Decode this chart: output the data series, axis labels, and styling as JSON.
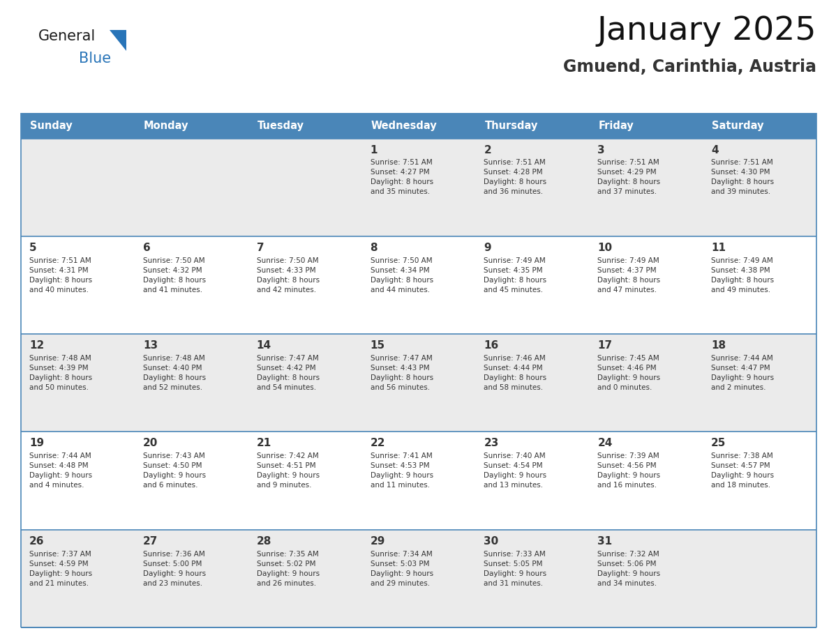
{
  "title": "January 2025",
  "subtitle": "Gmuend, Carinthia, Austria",
  "header_color": "#4a86b8",
  "header_text_color": "#ffffff",
  "cell_bg_even": "#ebebeb",
  "cell_bg_odd": "#ffffff",
  "day_number_color": "#333333",
  "text_color": "#333333",
  "separator_color": "#4a86b8",
  "days_of_week": [
    "Sunday",
    "Monday",
    "Tuesday",
    "Wednesday",
    "Thursday",
    "Friday",
    "Saturday"
  ],
  "calendar": [
    [
      {
        "day": "",
        "info": ""
      },
      {
        "day": "",
        "info": ""
      },
      {
        "day": "",
        "info": ""
      },
      {
        "day": "1",
        "info": "Sunrise: 7:51 AM\nSunset: 4:27 PM\nDaylight: 8 hours\nand 35 minutes."
      },
      {
        "day": "2",
        "info": "Sunrise: 7:51 AM\nSunset: 4:28 PM\nDaylight: 8 hours\nand 36 minutes."
      },
      {
        "day": "3",
        "info": "Sunrise: 7:51 AM\nSunset: 4:29 PM\nDaylight: 8 hours\nand 37 minutes."
      },
      {
        "day": "4",
        "info": "Sunrise: 7:51 AM\nSunset: 4:30 PM\nDaylight: 8 hours\nand 39 minutes."
      }
    ],
    [
      {
        "day": "5",
        "info": "Sunrise: 7:51 AM\nSunset: 4:31 PM\nDaylight: 8 hours\nand 40 minutes."
      },
      {
        "day": "6",
        "info": "Sunrise: 7:50 AM\nSunset: 4:32 PM\nDaylight: 8 hours\nand 41 minutes."
      },
      {
        "day": "7",
        "info": "Sunrise: 7:50 AM\nSunset: 4:33 PM\nDaylight: 8 hours\nand 42 minutes."
      },
      {
        "day": "8",
        "info": "Sunrise: 7:50 AM\nSunset: 4:34 PM\nDaylight: 8 hours\nand 44 minutes."
      },
      {
        "day": "9",
        "info": "Sunrise: 7:49 AM\nSunset: 4:35 PM\nDaylight: 8 hours\nand 45 minutes."
      },
      {
        "day": "10",
        "info": "Sunrise: 7:49 AM\nSunset: 4:37 PM\nDaylight: 8 hours\nand 47 minutes."
      },
      {
        "day": "11",
        "info": "Sunrise: 7:49 AM\nSunset: 4:38 PM\nDaylight: 8 hours\nand 49 minutes."
      }
    ],
    [
      {
        "day": "12",
        "info": "Sunrise: 7:48 AM\nSunset: 4:39 PM\nDaylight: 8 hours\nand 50 minutes."
      },
      {
        "day": "13",
        "info": "Sunrise: 7:48 AM\nSunset: 4:40 PM\nDaylight: 8 hours\nand 52 minutes."
      },
      {
        "day": "14",
        "info": "Sunrise: 7:47 AM\nSunset: 4:42 PM\nDaylight: 8 hours\nand 54 minutes."
      },
      {
        "day": "15",
        "info": "Sunrise: 7:47 AM\nSunset: 4:43 PM\nDaylight: 8 hours\nand 56 minutes."
      },
      {
        "day": "16",
        "info": "Sunrise: 7:46 AM\nSunset: 4:44 PM\nDaylight: 8 hours\nand 58 minutes."
      },
      {
        "day": "17",
        "info": "Sunrise: 7:45 AM\nSunset: 4:46 PM\nDaylight: 9 hours\nand 0 minutes."
      },
      {
        "day": "18",
        "info": "Sunrise: 7:44 AM\nSunset: 4:47 PM\nDaylight: 9 hours\nand 2 minutes."
      }
    ],
    [
      {
        "day": "19",
        "info": "Sunrise: 7:44 AM\nSunset: 4:48 PM\nDaylight: 9 hours\nand 4 minutes."
      },
      {
        "day": "20",
        "info": "Sunrise: 7:43 AM\nSunset: 4:50 PM\nDaylight: 9 hours\nand 6 minutes."
      },
      {
        "day": "21",
        "info": "Sunrise: 7:42 AM\nSunset: 4:51 PM\nDaylight: 9 hours\nand 9 minutes."
      },
      {
        "day": "22",
        "info": "Sunrise: 7:41 AM\nSunset: 4:53 PM\nDaylight: 9 hours\nand 11 minutes."
      },
      {
        "day": "23",
        "info": "Sunrise: 7:40 AM\nSunset: 4:54 PM\nDaylight: 9 hours\nand 13 minutes."
      },
      {
        "day": "24",
        "info": "Sunrise: 7:39 AM\nSunset: 4:56 PM\nDaylight: 9 hours\nand 16 minutes."
      },
      {
        "day": "25",
        "info": "Sunrise: 7:38 AM\nSunset: 4:57 PM\nDaylight: 9 hours\nand 18 minutes."
      }
    ],
    [
      {
        "day": "26",
        "info": "Sunrise: 7:37 AM\nSunset: 4:59 PM\nDaylight: 9 hours\nand 21 minutes."
      },
      {
        "day": "27",
        "info": "Sunrise: 7:36 AM\nSunset: 5:00 PM\nDaylight: 9 hours\nand 23 minutes."
      },
      {
        "day": "28",
        "info": "Sunrise: 7:35 AM\nSunset: 5:02 PM\nDaylight: 9 hours\nand 26 minutes."
      },
      {
        "day": "29",
        "info": "Sunrise: 7:34 AM\nSunset: 5:03 PM\nDaylight: 9 hours\nand 29 minutes."
      },
      {
        "day": "30",
        "info": "Sunrise: 7:33 AM\nSunset: 5:05 PM\nDaylight: 9 hours\nand 31 minutes."
      },
      {
        "day": "31",
        "info": "Sunrise: 7:32 AM\nSunset: 5:06 PM\nDaylight: 9 hours\nand 34 minutes."
      },
      {
        "day": "",
        "info": ""
      }
    ]
  ],
  "logo_general_color": "#1a1a1a",
  "logo_blue_color": "#2874b8",
  "logo_triangle_color": "#2874b8"
}
